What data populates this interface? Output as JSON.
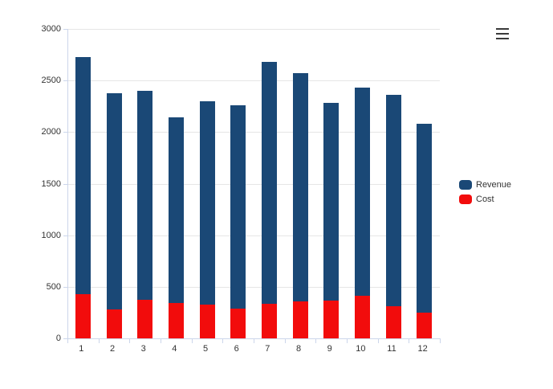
{
  "window": {
    "background": "#ffffff"
  },
  "icons": {
    "context_menu": "hamburger-icon"
  },
  "colors": {
    "revenue": "#1a4876",
    "cost": "#f20c0c",
    "gridline": "#e6e6e6",
    "axis_line": "#ccd6eb",
    "axis_label": "#333333",
    "menu_icon": "#3a3a3a"
  },
  "chart_data": {
    "type": "bar",
    "subtype": "column-overlay",
    "title": "",
    "xlabel": "",
    "ylabel": "",
    "categories": [
      "1",
      "2",
      "3",
      "4",
      "5",
      "6",
      "7",
      "8",
      "9",
      "10",
      "11",
      "12"
    ],
    "series": [
      {
        "name": "Revenue",
        "color": "#1a4876",
        "values": [
          2730,
          2380,
          2400,
          2140,
          2300,
          2260,
          2680,
          2570,
          2280,
          2430,
          2360,
          2080
        ]
      },
      {
        "name": "Cost",
        "color": "#f20c0c",
        "values": [
          430,
          280,
          375,
          345,
          330,
          285,
          335,
          355,
          370,
          410,
          315,
          250
        ]
      }
    ],
    "ylim": [
      0,
      3000
    ],
    "y_ticks": [
      0,
      500,
      1000,
      1500,
      2000,
      2500,
      3000
    ],
    "grid": true,
    "legend_position": "right"
  }
}
